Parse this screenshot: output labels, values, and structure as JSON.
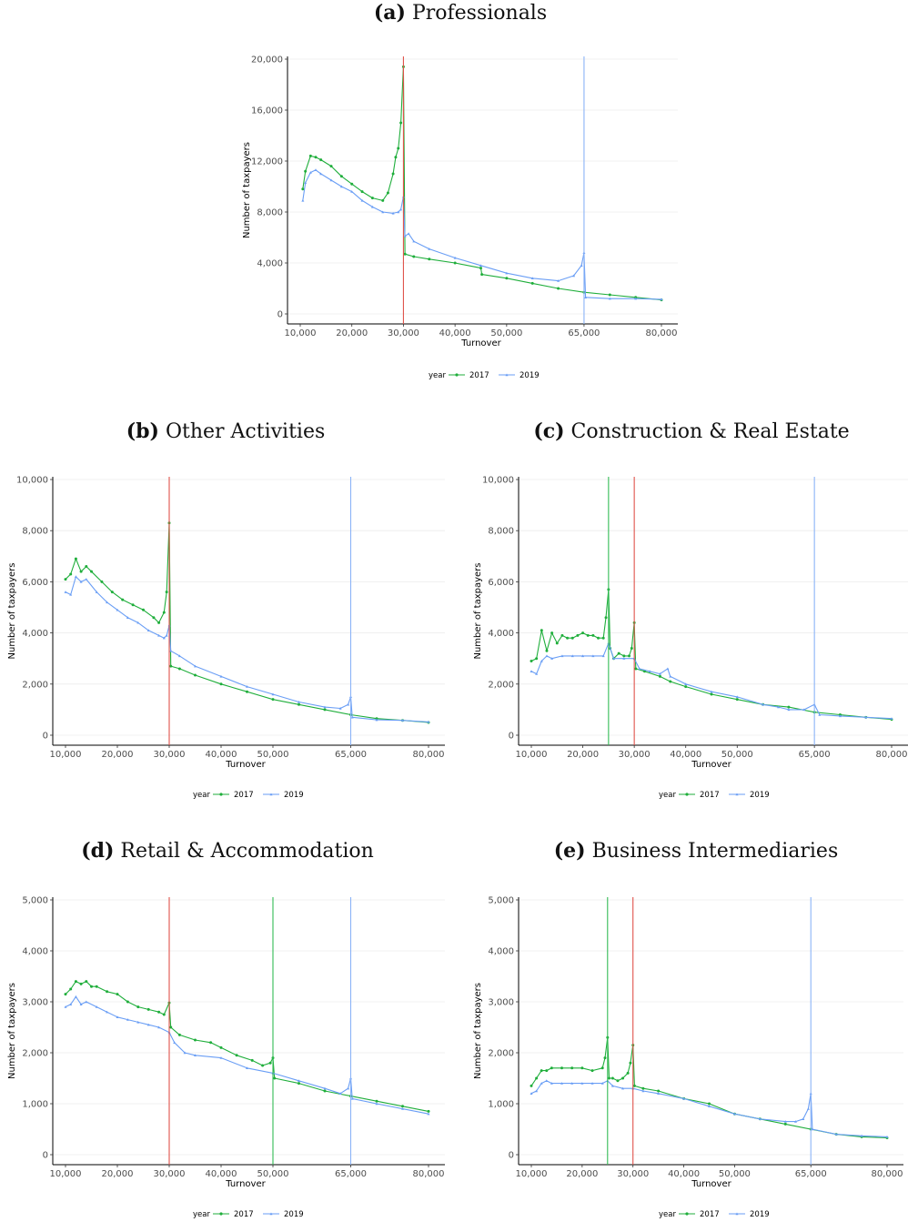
{
  "legend": {
    "title": "year",
    "labels": [
      "2017",
      "2019"
    ]
  },
  "colors": {
    "y2017": "#1fae3b",
    "y2019": "#6a9ef5",
    "ref_red": "#e0524a",
    "ref_green": "#33bb55",
    "ref_blue": "#8ab3f7"
  },
  "chart_data": [
    {
      "id": "a",
      "type": "line",
      "title_prefix": "(a)",
      "title": "Professionals",
      "xlabel": "Turnover",
      "ylabel": "Number of taxpayers",
      "xlim": [
        10000,
        80000
      ],
      "ylim": [
        0,
        20000
      ],
      "x_ticks": [
        10000,
        20000,
        30000,
        40000,
        50000,
        65000,
        80000
      ],
      "x_tick_labels": [
        "10,000",
        "20,000",
        "30,000",
        "40,000",
        "50,000",
        "65,000",
        "80,000"
      ],
      "y_ticks": [
        0,
        4000,
        8000,
        12000,
        16000,
        20000
      ],
      "y_tick_labels": [
        "0",
        "4,000",
        "8,000",
        "12,000",
        "16,000",
        "20,000"
      ],
      "vlines": [
        {
          "x": 30000,
          "color": "red"
        },
        {
          "x": 65000,
          "color": "blue"
        }
      ],
      "series": [
        {
          "name": "2017",
          "x": [
            10500,
            11000,
            12000,
            13000,
            14000,
            16000,
            18000,
            20000,
            22000,
            24000,
            26000,
            27000,
            28000,
            28500,
            29000,
            29500,
            30000,
            30300,
            32000,
            35000,
            40000,
            45000,
            45200,
            50000,
            55000,
            60000,
            65000,
            70000,
            75000,
            80000
          ],
          "y": [
            9800,
            11200,
            12400,
            12300,
            12100,
            11600,
            10800,
            10200,
            9600,
            9100,
            8900,
            9500,
            11000,
            12300,
            13000,
            15000,
            19400,
            4700,
            4500,
            4300,
            4000,
            3600,
            3100,
            2800,
            2400,
            2000,
            1700,
            1500,
            1300,
            1100
          ]
        },
        {
          "name": "2019",
          "x": [
            10500,
            11000,
            12000,
            13000,
            14000,
            16000,
            18000,
            20000,
            22000,
            24000,
            26000,
            28000,
            29000,
            29500,
            30000,
            30300,
            31000,
            32000,
            35000,
            40000,
            45000,
            50000,
            55000,
            60000,
            63000,
            64500,
            65000,
            65300,
            70000,
            75000,
            80000
          ],
          "y": [
            8900,
            10300,
            11100,
            11300,
            11000,
            10500,
            10000,
            9600,
            8900,
            8400,
            8000,
            7900,
            8000,
            8200,
            9200,
            6100,
            6300,
            5700,
            5100,
            4400,
            3800,
            3200,
            2800,
            2600,
            3000,
            3800,
            4800,
            1300,
            1200,
            1200,
            1150
          ]
        }
      ]
    },
    {
      "id": "b",
      "type": "line",
      "title_prefix": "(b)",
      "title": "Other Activities",
      "xlabel": "Turnover",
      "ylabel": "Number of taxpayers",
      "xlim": [
        10000,
        80000
      ],
      "ylim": [
        0,
        10000
      ],
      "x_ticks": [
        10000,
        20000,
        30000,
        40000,
        50000,
        65000,
        80000
      ],
      "x_tick_labels": [
        "10,000",
        "20,000",
        "30,000",
        "40,000",
        "50,000",
        "65,000",
        "80,000"
      ],
      "y_ticks": [
        0,
        2000,
        4000,
        6000,
        8000,
        10000
      ],
      "y_tick_labels": [
        "0",
        "2,000",
        "4,000",
        "6,000",
        "8,000",
        "10,000"
      ],
      "vlines": [
        {
          "x": 30000,
          "color": "red"
        },
        {
          "x": 65000,
          "color": "blue"
        }
      ],
      "series": [
        {
          "name": "2017",
          "x": [
            10000,
            11000,
            12000,
            13000,
            14000,
            15000,
            17000,
            19000,
            21000,
            23000,
            25000,
            27000,
            28000,
            29000,
            29500,
            30000,
            30300,
            32000,
            35000,
            40000,
            45000,
            50000,
            55000,
            60000,
            65000,
            70000,
            75000,
            80000
          ],
          "y": [
            6100,
            6300,
            6900,
            6400,
            6600,
            6400,
            6000,
            5600,
            5300,
            5100,
            4900,
            4600,
            4400,
            4800,
            5600,
            8300,
            2700,
            2600,
            2350,
            2000,
            1700,
            1400,
            1200,
            1000,
            800,
            650,
            580,
            500
          ]
        },
        {
          "name": "2019",
          "x": [
            10000,
            11000,
            12000,
            13000,
            14000,
            16000,
            18000,
            20000,
            22000,
            24000,
            26000,
            28000,
            29000,
            29500,
            30000,
            30300,
            32000,
            35000,
            40000,
            45000,
            50000,
            55000,
            60000,
            63000,
            64500,
            65000,
            65300,
            70000,
            75000,
            80000
          ],
          "y": [
            5600,
            5500,
            6200,
            6000,
            6100,
            5600,
            5200,
            4900,
            4600,
            4400,
            4100,
            3900,
            3800,
            3900,
            4300,
            3300,
            3100,
            2700,
            2300,
            1900,
            1600,
            1300,
            1100,
            1050,
            1200,
            1500,
            700,
            600,
            580,
            520
          ]
        }
      ]
    },
    {
      "id": "c",
      "type": "line",
      "title_prefix": "(c)",
      "title": "Construction & Real Estate",
      "xlabel": "Turnover",
      "ylabel": "Number of taxpayers",
      "xlim": [
        10000,
        80000
      ],
      "ylim": [
        0,
        10000
      ],
      "x_ticks": [
        10000,
        20000,
        30000,
        40000,
        50000,
        65000,
        80000
      ],
      "x_tick_labels": [
        "10,000",
        "20,000",
        "30,000",
        "40,000",
        "50,000",
        "65,000",
        "80,000"
      ],
      "y_ticks": [
        0,
        2000,
        4000,
        6000,
        8000,
        10000
      ],
      "y_tick_labels": [
        "0",
        "2,000",
        "4,000",
        "6,000",
        "8,000",
        "10,000"
      ],
      "vlines": [
        {
          "x": 25000,
          "color": "green"
        },
        {
          "x": 30000,
          "color": "red"
        },
        {
          "x": 65000,
          "color": "blue"
        }
      ],
      "series": [
        {
          "name": "2017",
          "x": [
            10000,
            11000,
            12000,
            13000,
            14000,
            15000,
            16000,
            17000,
            18000,
            19000,
            20000,
            21000,
            22000,
            23000,
            24000,
            24500,
            25000,
            25300,
            26000,
            27000,
            28000,
            29000,
            29500,
            30000,
            30300,
            32000,
            35000,
            37000,
            40000,
            45000,
            50000,
            55000,
            60000,
            65000,
            70000,
            75000,
            80000
          ],
          "y": [
            2900,
            3000,
            4100,
            3300,
            4000,
            3600,
            3900,
            3800,
            3800,
            3900,
            4000,
            3900,
            3900,
            3800,
            3800,
            4600,
            5700,
            3400,
            3000,
            3200,
            3100,
            3100,
            3400,
            4400,
            2600,
            2500,
            2300,
            2100,
            1900,
            1600,
            1400,
            1200,
            1100,
            900,
            800,
            700,
            620
          ]
        },
        {
          "name": "2019",
          "x": [
            10000,
            11000,
            12000,
            13000,
            14000,
            16000,
            18000,
            20000,
            22000,
            24000,
            25000,
            26000,
            28000,
            30000,
            31000,
            33000,
            35000,
            36500,
            37000,
            40000,
            45000,
            50000,
            55000,
            58000,
            60000,
            63000,
            65000,
            66000,
            70000,
            75000,
            80000
          ],
          "y": [
            2500,
            2400,
            2900,
            3100,
            3000,
            3100,
            3100,
            3100,
            3100,
            3100,
            3600,
            3000,
            3000,
            3000,
            2600,
            2500,
            2400,
            2600,
            2300,
            2000,
            1700,
            1500,
            1200,
            1100,
            1000,
            1000,
            1200,
            800,
            750,
            700,
            650
          ]
        }
      ]
    },
    {
      "id": "d",
      "type": "line",
      "title_prefix": "(d)",
      "title": "Retail & Accommodation",
      "xlabel": "Turnover",
      "ylabel": "Number of taxpayers",
      "xlim": [
        10000,
        80000
      ],
      "ylim": [
        0,
        5000
      ],
      "x_ticks": [
        10000,
        20000,
        30000,
        40000,
        50000,
        65000,
        80000
      ],
      "x_tick_labels": [
        "10,000",
        "20,000",
        "30,000",
        "40,000",
        "50,000",
        "65,000",
        "80,000"
      ],
      "y_ticks": [
        0,
        1000,
        2000,
        3000,
        4000,
        5000
      ],
      "y_tick_labels": [
        "0",
        "1,000",
        "2,000",
        "3,000",
        "4,000",
        "5,000"
      ],
      "vlines": [
        {
          "x": 30000,
          "color": "red"
        },
        {
          "x": 50000,
          "color": "green"
        },
        {
          "x": 65000,
          "color": "blue"
        }
      ],
      "series": [
        {
          "name": "2017",
          "x": [
            10000,
            11000,
            12000,
            13000,
            14000,
            15000,
            16000,
            18000,
            20000,
            22000,
            24000,
            26000,
            28000,
            29000,
            30000,
            30300,
            32000,
            35000,
            38000,
            40000,
            43000,
            46000,
            48000,
            49500,
            50000,
            50300,
            55000,
            60000,
            65000,
            70000,
            75000,
            80000
          ],
          "y": [
            3150,
            3250,
            3400,
            3350,
            3400,
            3300,
            3300,
            3200,
            3150,
            3000,
            2900,
            2850,
            2800,
            2750,
            2980,
            2500,
            2350,
            2250,
            2200,
            2100,
            1950,
            1850,
            1750,
            1800,
            1900,
            1500,
            1400,
            1250,
            1150,
            1050,
            950,
            850
          ]
        },
        {
          "name": "2019",
          "x": [
            10000,
            11000,
            12000,
            13000,
            14000,
            16000,
            18000,
            20000,
            22000,
            24000,
            26000,
            28000,
            30000,
            31000,
            33000,
            35000,
            40000,
            45000,
            50000,
            55000,
            60000,
            63000,
            64500,
            65000,
            65300,
            70000,
            75000,
            80000
          ],
          "y": [
            2900,
            2950,
            3100,
            2950,
            3000,
            2900,
            2800,
            2700,
            2650,
            2600,
            2550,
            2500,
            2400,
            2200,
            2000,
            1950,
            1900,
            1700,
            1600,
            1450,
            1300,
            1200,
            1300,
            1500,
            1100,
            1000,
            900,
            800
          ]
        }
      ]
    },
    {
      "id": "e",
      "type": "line",
      "title_prefix": "(e)",
      "title": "Business Intermediaries",
      "xlabel": "Turnover",
      "ylabel": "Number of taxpayers",
      "xlim": [
        10000,
        80000
      ],
      "ylim": [
        0,
        5000
      ],
      "x_ticks": [
        10000,
        20000,
        30000,
        40000,
        50000,
        65000,
        80000
      ],
      "x_tick_labels": [
        "10,000",
        "20,000",
        "30,000",
        "40,000",
        "50,000",
        "65,000",
        "80,000"
      ],
      "y_ticks": [
        0,
        1000,
        2000,
        3000,
        4000,
        5000
      ],
      "y_tick_labels": [
        "0",
        "1,000",
        "2,000",
        "3,000",
        "4,000",
        "5,000"
      ],
      "vlines": [
        {
          "x": 25000,
          "color": "green"
        },
        {
          "x": 30000,
          "color": "red"
        },
        {
          "x": 65000,
          "color": "blue"
        }
      ],
      "series": [
        {
          "name": "2017",
          "x": [
            10000,
            11000,
            12000,
            13000,
            14000,
            16000,
            18000,
            20000,
            22000,
            24000,
            24500,
            25000,
            25300,
            26000,
            27000,
            28000,
            29000,
            29500,
            30000,
            30300,
            32000,
            35000,
            40000,
            45000,
            50000,
            55000,
            60000,
            65000,
            70000,
            75000,
            80000
          ],
          "y": [
            1350,
            1500,
            1650,
            1650,
            1700,
            1700,
            1700,
            1700,
            1650,
            1700,
            1900,
            2300,
            1500,
            1500,
            1450,
            1500,
            1600,
            1800,
            2150,
            1350,
            1300,
            1250,
            1100,
            1000,
            800,
            700,
            600,
            500,
            400,
            350,
            330
          ]
        },
        {
          "name": "2019",
          "x": [
            10000,
            11000,
            12000,
            13000,
            14000,
            16000,
            18000,
            20000,
            22000,
            24000,
            25000,
            26000,
            28000,
            30000,
            32000,
            35000,
            40000,
            45000,
            50000,
            55000,
            60000,
            62000,
            63500,
            64500,
            65000,
            65300,
            70000,
            75000,
            80000
          ],
          "y": [
            1200,
            1250,
            1400,
            1450,
            1400,
            1400,
            1400,
            1400,
            1400,
            1400,
            1450,
            1350,
            1300,
            1300,
            1250,
            1200,
            1100,
            950,
            800,
            700,
            650,
            650,
            700,
            900,
            1200,
            500,
            400,
            370,
            350
          ]
        }
      ]
    }
  ]
}
